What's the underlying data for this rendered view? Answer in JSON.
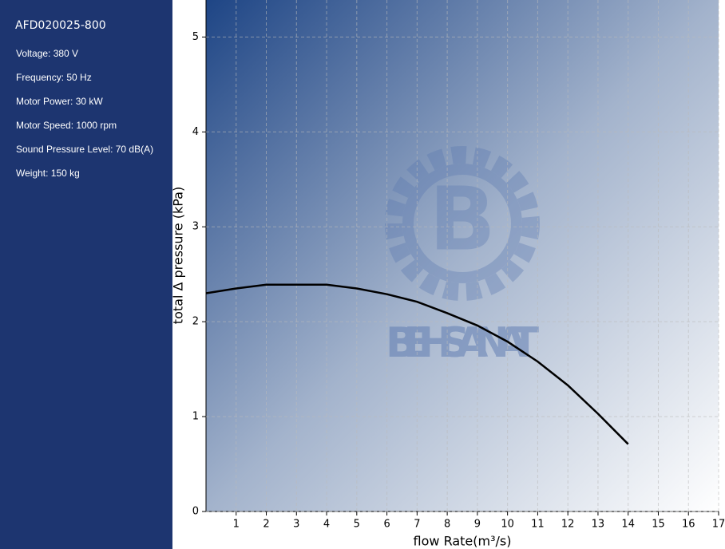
{
  "sidebar": {
    "title": "AFD020025-800",
    "specs": [
      "Voltage: 380 V",
      "Frequency: 50 Hz",
      "Motor Power: 30 kW",
      "Motor Speed: 1000 rpm",
      "Sound Pressure Level: 70 dB(A)",
      "Weight: 150 kg"
    ]
  },
  "chart_data": {
    "type": "line",
    "watermark": "BEH SANAT",
    "x_label": "flow Rate(m³/s)",
    "y_label": "total Δ pressure (kPa)",
    "x": [
      0,
      1,
      2,
      3,
      4,
      5,
      6,
      7,
      8,
      9,
      10,
      11,
      12,
      13,
      14
    ],
    "series": [
      {
        "name": "AFD020025-800",
        "color": "#000000",
        "values": [
          2.3,
          2.35,
          2.39,
          2.39,
          2.39,
          2.35,
          2.29,
          2.21,
          2.09,
          1.96,
          1.79,
          1.58,
          1.33,
          1.03,
          0.71
        ]
      }
    ],
    "xlim": [
      0,
      17
    ],
    "ylim": [
      0,
      5.39
    ],
    "xticks": [
      1,
      2,
      3,
      4,
      5,
      6,
      7,
      8,
      9,
      10,
      11,
      12,
      13,
      14,
      15,
      16,
      17
    ],
    "yticks": [
      0,
      1,
      2,
      3,
      4,
      5
    ],
    "grid": true
  }
}
